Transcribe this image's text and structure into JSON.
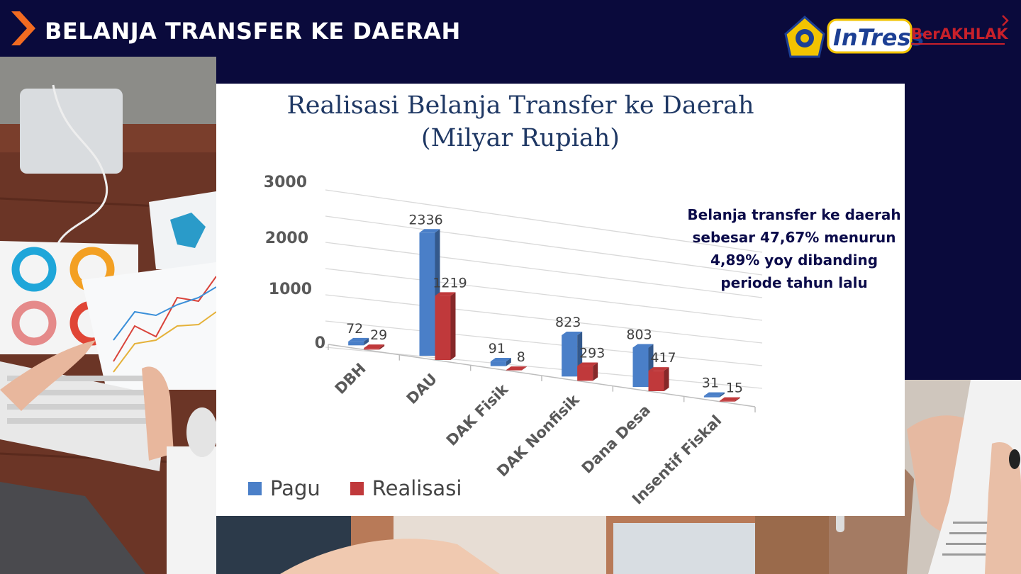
{
  "header": {
    "title": "BELANJA TRANSFER KE DAERAH",
    "accent_color": "#f26b21"
  },
  "logos": {
    "intress": "InTress",
    "berakhlak": "BerAKHLAK"
  },
  "chart_data": {
    "type": "bar",
    "title_line1": "Realisasi Belanja Transfer ke Daerah",
    "title_line2": "(Milyar Rupiah)",
    "categories": [
      "DBH",
      "DAU",
      "DAK Fisik",
      "DAK Nonfisik",
      "Dana Desa",
      "Insentif Fiskal"
    ],
    "series": [
      {
        "name": "Pagu",
        "values": [
          72,
          2336,
          91,
          823,
          803,
          31
        ],
        "color": "#4a7fc8"
      },
      {
        "name": "Realisasi",
        "values": [
          29,
          1219,
          8,
          293,
          417,
          15
        ],
        "color": "#c0393b"
      }
    ],
    "ylim": [
      0,
      3000
    ],
    "yticks": [
      "0",
      "1000",
      "2000",
      "3000"
    ],
    "grid": true,
    "legend": "bottom-left",
    "style": "3d-perspective"
  },
  "annotation": {
    "line1": "Belanja transfer ke daerah",
    "line2": "sebesar 47,67% menurun",
    "line3": "4,89% yoy dibanding",
    "line4": "periode tahun lalu"
  }
}
